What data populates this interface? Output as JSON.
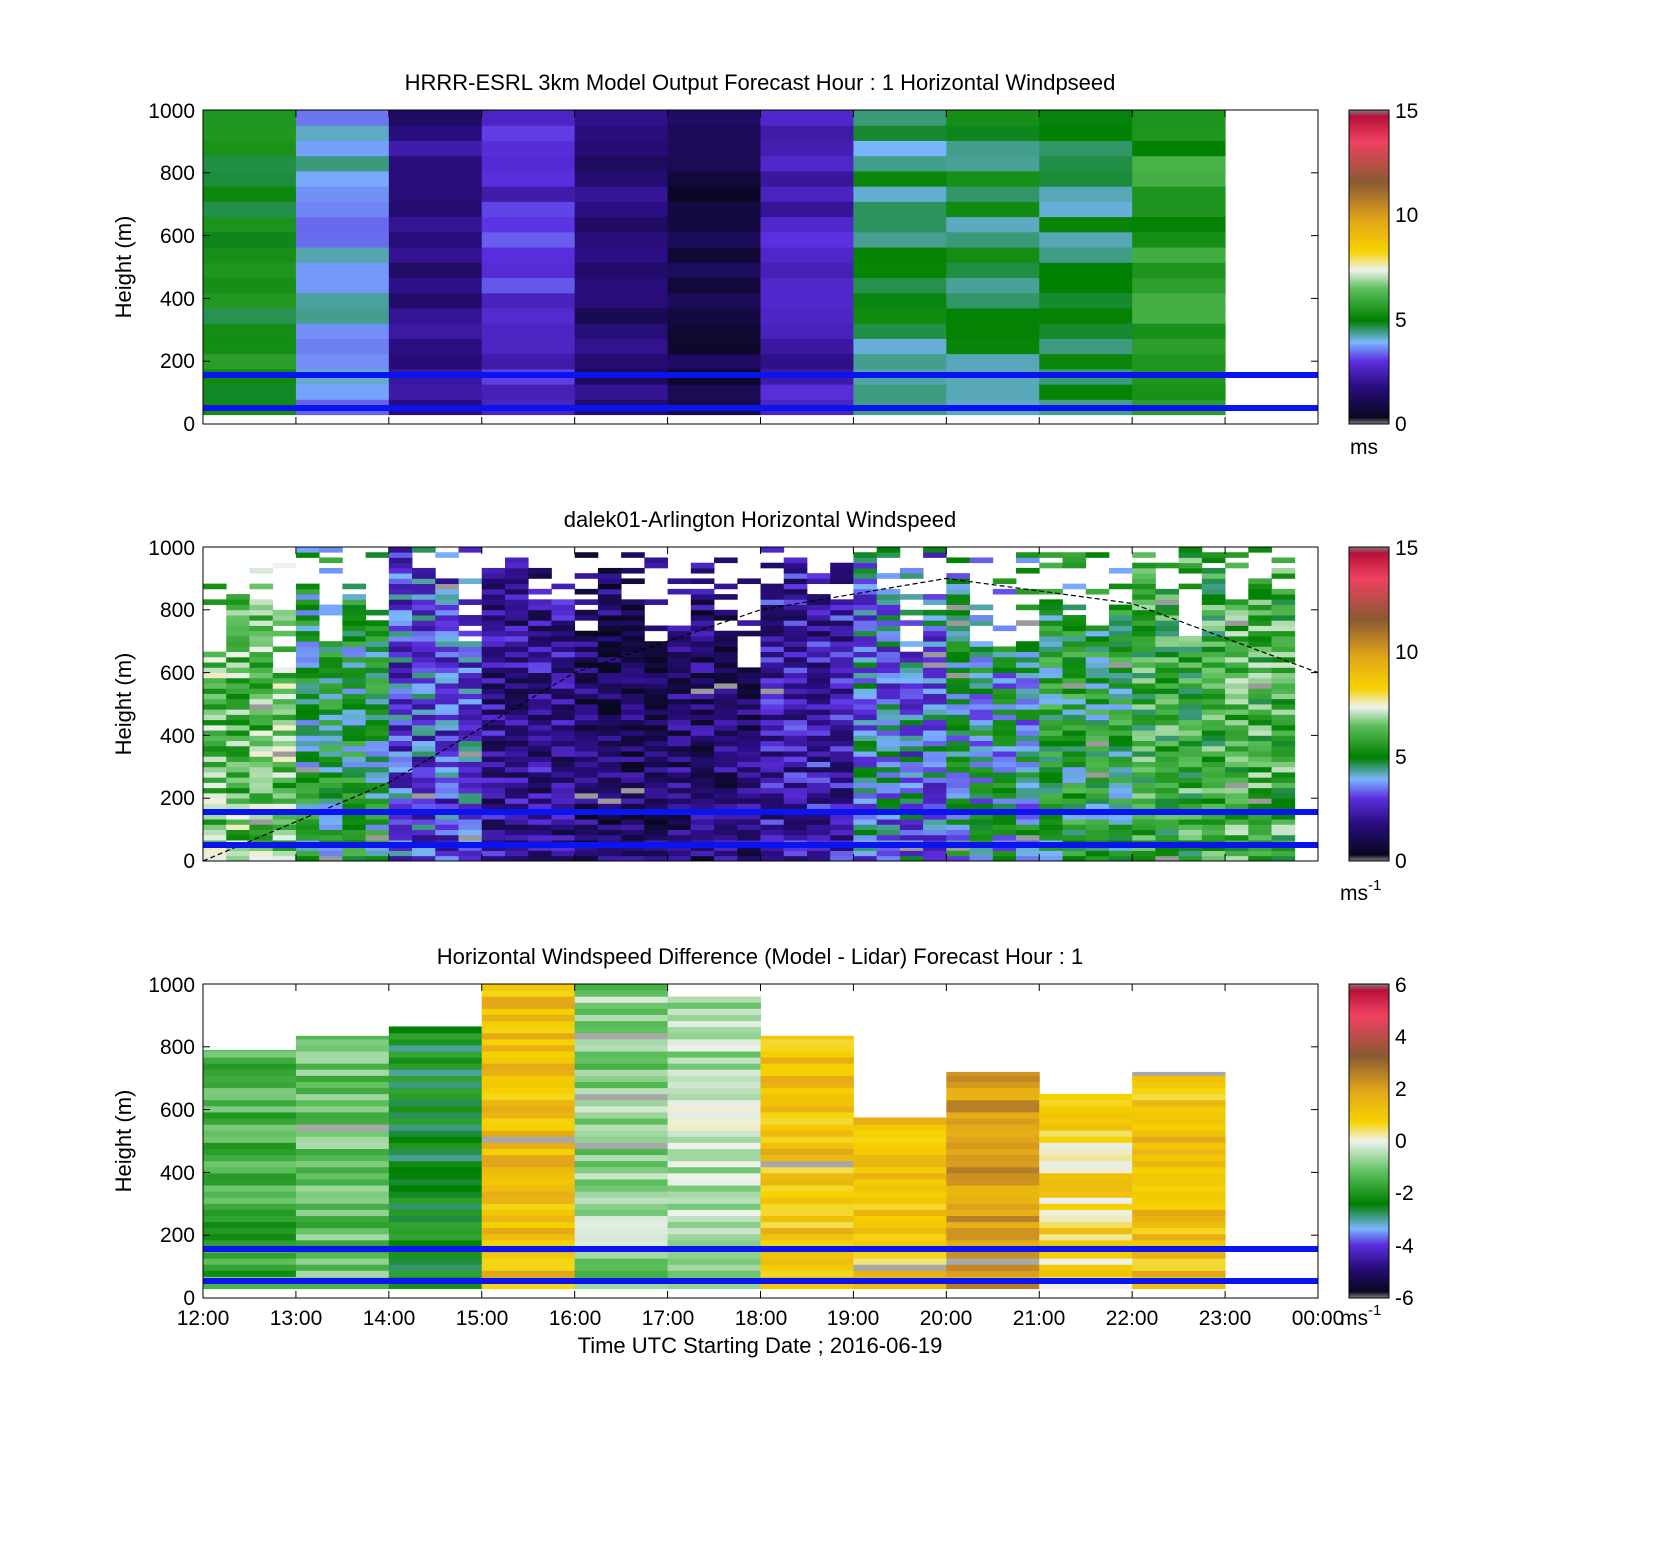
{
  "figure": {
    "xlabel": "Time UTC  Starting Date ; 2016-06-19",
    "x_ticks": [
      "12:00",
      "13:00",
      "14:00",
      "15:00",
      "16:00",
      "17:00",
      "18:00",
      "19:00",
      "20:00",
      "21:00",
      "22:00",
      "23:00",
      "00:00"
    ]
  },
  "chart_data": [
    {
      "type": "heatmap",
      "title": "HRRR-ESRL 3km Model Output   Forecast Hour : 1 Horizontal Windpseed",
      "ylabel": "Height (m)",
      "ylim": [
        0,
        1000
      ],
      "y_ticks": [
        "0",
        "200",
        "400",
        "600",
        "800",
        "1000"
      ],
      "colorbar": {
        "ticks": [
          "0",
          "5",
          "10",
          "15"
        ],
        "range": [
          0,
          15
        ],
        "unit": "ms"
      },
      "grid": false,
      "hourly_speed_ms": [
        {
          "hour": "12:00",
          "speed": 4.9
        },
        {
          "hour": "13:00",
          "speed": 3.8
        },
        {
          "hour": "14:00",
          "speed": 1.8
        },
        {
          "hour": "15:00",
          "speed": 2.9
        },
        {
          "hour": "16:00",
          "speed": 1.5
        },
        {
          "hour": "17:00",
          "speed": 0.7
        },
        {
          "hour": "18:00",
          "speed": 2.5
        },
        {
          "hour": "19:00",
          "speed": 4.5
        },
        {
          "hour": "20:00",
          "speed": 4.6
        },
        {
          "hour": "21:00",
          "speed": 4.6
        },
        {
          "hour": "22:00",
          "speed": 5.4
        }
      ],
      "reference_lines_m": [
        50,
        155
      ]
    },
    {
      "type": "heatmap",
      "title": "dalek01-Arlington  Horizontal Windspeed",
      "ylabel": "Height (m)",
      "ylim": [
        0,
        1000
      ],
      "y_ticks": [
        "0",
        "200",
        "400",
        "600",
        "800",
        "1000"
      ],
      "colorbar": {
        "ticks": [
          "0",
          "5",
          "10",
          "15"
        ],
        "range": [
          0,
          15
        ],
        "unit": "ms",
        "unit_exponent": "-1"
      },
      "grid": false,
      "hourly_speed_ms": [
        {
          "hour": "12:00",
          "speed": 6.2
        },
        {
          "hour": "13:00",
          "speed": 4.8
        },
        {
          "hour": "14:00",
          "speed": 3.2
        },
        {
          "hour": "15:00",
          "speed": 1.9
        },
        {
          "hour": "16:00",
          "speed": 1.2
        },
        {
          "hour": "17:00",
          "speed": 1.4
        },
        {
          "hour": "18:00",
          "speed": 2.2
        },
        {
          "hour": "19:00",
          "speed": 3.6
        },
        {
          "hour": "20:00",
          "speed": 4.3
        },
        {
          "hour": "21:00",
          "speed": 5.0
        },
        {
          "hour": "22:00",
          "speed": 5.6
        },
        {
          "hour": "23:00",
          "speed": 5.8
        }
      ],
      "boundary_layer_height_m": [
        {
          "hour": "12:00",
          "height": 0
        },
        {
          "hour": "14:00",
          "height": 250
        },
        {
          "hour": "16:00",
          "height": 600
        },
        {
          "hour": "18:00",
          "height": 800
        },
        {
          "hour": "20:00",
          "height": 900
        },
        {
          "hour": "22:00",
          "height": 820
        },
        {
          "hour": "00:00",
          "height": 600
        }
      ],
      "reference_lines_m": [
        50,
        155
      ]
    },
    {
      "type": "heatmap",
      "title": "Horizontal Windspeed Difference (Model - Lidar) Forecast Hour : 1",
      "ylabel": "Height (m)",
      "ylim": [
        0,
        1000
      ],
      "y_ticks": [
        "0",
        "200",
        "400",
        "600",
        "800",
        "1000"
      ],
      "colorbar": {
        "ticks": [
          "-6",
          "-4",
          "-2",
          "0",
          "2",
          "4",
          "6"
        ],
        "range": [
          -6,
          6
        ],
        "unit": "ms",
        "unit_exponent": "-1"
      },
      "grid": false,
      "hourly_difference_ms": [
        {
          "hour": "12:00",
          "diff": -1.5,
          "top_m": 790
        },
        {
          "hour": "13:00",
          "diff": -1.2,
          "top_m": 835
        },
        {
          "hour": "14:00",
          "diff": -2.4,
          "top_m": 865
        },
        {
          "hour": "15:00",
          "diff": 1.3,
          "top_m": 1000
        },
        {
          "hour": "16:00",
          "diff": -0.8,
          "top_m": 1000
        },
        {
          "hour": "17:00",
          "diff": -0.5,
          "top_m": 960
        },
        {
          "hour": "18:00",
          "diff": 1.1,
          "top_m": 835
        },
        {
          "hour": "19:00",
          "diff": 1.0,
          "top_m": 575
        },
        {
          "hour": "20:00",
          "diff": 2.0,
          "top_m": 720
        },
        {
          "hour": "21:00",
          "diff": 0.6,
          "top_m": 650
        },
        {
          "hour": "22:00",
          "diff": 1.2,
          "top_m": 720
        }
      ],
      "reference_lines_m": [
        50,
        155
      ]
    }
  ],
  "colors": {
    "reference_line": "#0a14f0",
    "missing": "#8a8a8a",
    "frame": "#000000"
  }
}
